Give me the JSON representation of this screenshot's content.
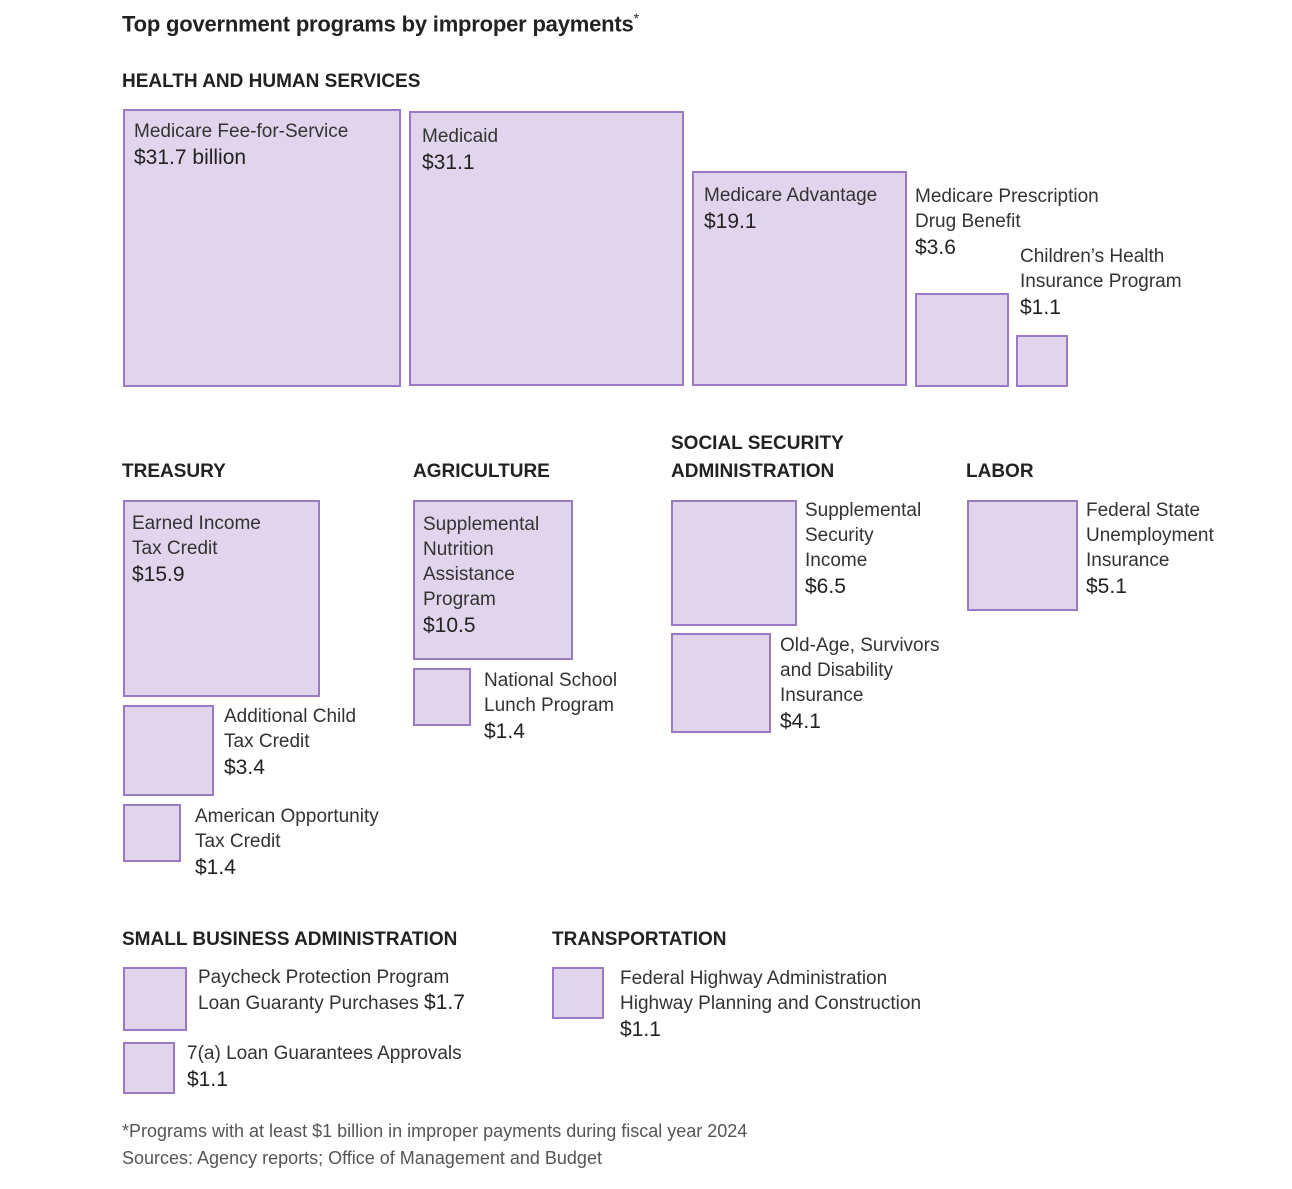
{
  "title": "Top government programs by improper payments",
  "title_marker": "*",
  "colors": {
    "box_fill": "#e0d5ec",
    "box_border": "#9b7ac4"
  },
  "chart_data": {
    "type": "table",
    "title": "Top government programs by improper payments*",
    "units": "billion dollars",
    "groups": [
      {
        "name": "HEALTH AND HUMAN SERVICES",
        "programs": [
          {
            "name": "Medicare Fee-for-Service",
            "value": 31.7,
            "label": "$31.7 billion"
          },
          {
            "name": "Medicaid",
            "value": 31.1,
            "label": "$31.1"
          },
          {
            "name": "Medicare Advantage",
            "value": 19.1,
            "label": "$19.1"
          },
          {
            "name": "Medicare Prescription\nDrug Benefit",
            "value": 3.6,
            "label": "$3.6"
          },
          {
            "name": "Children’s Health\nInsurance Program",
            "value": 1.1,
            "label": "$1.1"
          }
        ]
      },
      {
        "name": "TREASURY",
        "programs": [
          {
            "name": "Earned Income\nTax Credit",
            "value": 15.9,
            "label": "$15.9"
          },
          {
            "name": "Additional Child\nTax Credit",
            "value": 3.4,
            "label": "$3.4"
          },
          {
            "name": "American Opportunity\nTax Credit",
            "value": 1.4,
            "label": "$1.4"
          }
        ]
      },
      {
        "name": "AGRICULTURE",
        "programs": [
          {
            "name": "Supplemental\nNutrition\nAssistance\nProgram",
            "value": 10.5,
            "label": "$10.5"
          },
          {
            "name": "National School\nLunch Program",
            "value": 1.4,
            "label": "$1.4"
          }
        ]
      },
      {
        "name": "SOCIAL SECURITY\nADMINISTRATION",
        "programs": [
          {
            "name": "Supplemental\nSecurity\nIncome",
            "value": 6.5,
            "label": "$6.5"
          },
          {
            "name": "Old-Age, Survivors\nand Disability\nInsurance",
            "value": 4.1,
            "label": "$4.1"
          }
        ]
      },
      {
        "name": "LABOR",
        "programs": [
          {
            "name": "Federal State\nUnemployment\nInsurance",
            "value": 5.1,
            "label": "$5.1"
          }
        ]
      },
      {
        "name": "SMALL BUSINESS ADMINISTRATION",
        "programs": [
          {
            "name": "Paycheck Protection Program\nLoan Guaranty Purchases",
            "value": 1.7,
            "label": "$1.7"
          },
          {
            "name": "7(a) Loan Guarantees Approvals",
            "value": 1.1,
            "label": "$1.1"
          }
        ]
      },
      {
        "name": "TRANSPORTATION",
        "programs": [
          {
            "name": "Federal Highway Administration\nHighway Planning and Construction",
            "value": 1.1,
            "label": "$1.1"
          }
        ]
      }
    ]
  },
  "footnotes": {
    "note": "*Programs with at least $1 billion in improper payments during fiscal year 2024",
    "sources": "Sources: Agency reports; Office of Management and Budget"
  }
}
